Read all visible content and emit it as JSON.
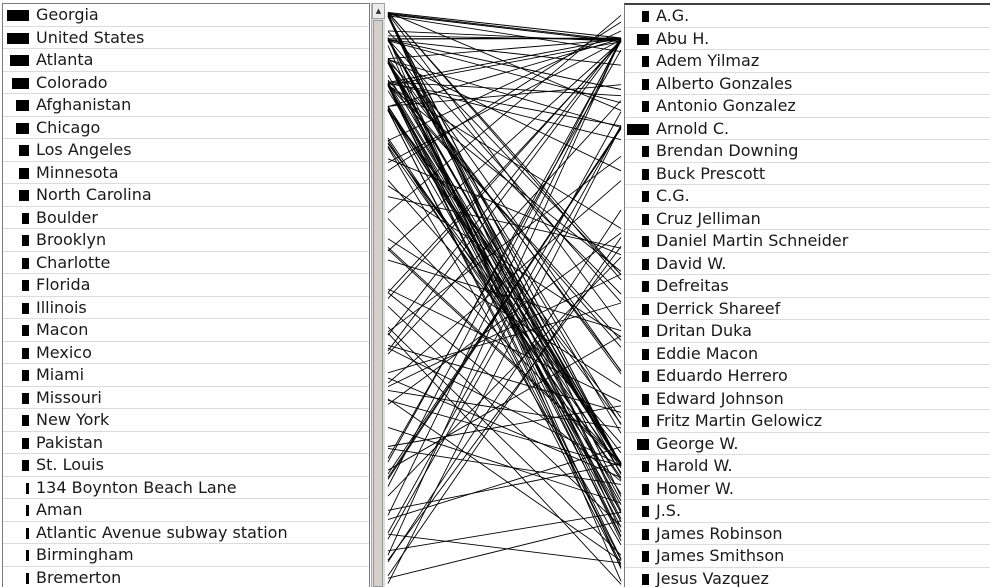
{
  "left_list": {
    "items": [
      {
        "label": "Georgia",
        "weight": 1.0
      },
      {
        "label": "United States",
        "weight": 1.0
      },
      {
        "label": "Atlanta",
        "weight": 0.85
      },
      {
        "label": "Colorado",
        "weight": 0.75
      },
      {
        "label": "Afghanistan",
        "weight": 0.6
      },
      {
        "label": "Chicago",
        "weight": 0.6
      },
      {
        "label": "Los Angeles",
        "weight": 0.45
      },
      {
        "label": "Minnesota",
        "weight": 0.45
      },
      {
        "label": "North Carolina",
        "weight": 0.45
      },
      {
        "label": "Boulder",
        "weight": 0.3
      },
      {
        "label": "Brooklyn",
        "weight": 0.3
      },
      {
        "label": "Charlotte",
        "weight": 0.3
      },
      {
        "label": "Florida",
        "weight": 0.3
      },
      {
        "label": "Illinois",
        "weight": 0.3
      },
      {
        "label": "Macon",
        "weight": 0.3
      },
      {
        "label": "Mexico",
        "weight": 0.3
      },
      {
        "label": "Miami",
        "weight": 0.3
      },
      {
        "label": "Missouri",
        "weight": 0.3
      },
      {
        "label": "New York",
        "weight": 0.3
      },
      {
        "label": "Pakistan",
        "weight": 0.3
      },
      {
        "label": "St. Louis",
        "weight": 0.3
      },
      {
        "label": "134 Boynton Beach Lane",
        "weight": 0.15
      },
      {
        "label": "Aman",
        "weight": 0.15
      },
      {
        "label": "Atlantic Avenue subway station",
        "weight": 0.15
      },
      {
        "label": "Birmingham",
        "weight": 0.15
      },
      {
        "label": "Bremerton",
        "weight": 0.15
      }
    ]
  },
  "right_list": {
    "items": [
      {
        "label": "A.G.",
        "weight": 0.3
      },
      {
        "label": "Abu H.",
        "weight": 0.55
      },
      {
        "label": "Adem Yilmaz",
        "weight": 0.3
      },
      {
        "label": "Alberto Gonzales",
        "weight": 0.3
      },
      {
        "label": "Antonio Gonzalez",
        "weight": 0.3
      },
      {
        "label": "Arnold C.",
        "weight": 1.0
      },
      {
        "label": "Brendan Downing",
        "weight": 0.3
      },
      {
        "label": "Buck Prescott",
        "weight": 0.3
      },
      {
        "label": "C.G.",
        "weight": 0.3
      },
      {
        "label": "Cruz Jelliman",
        "weight": 0.3
      },
      {
        "label": "Daniel Martin Schneider",
        "weight": 0.3
      },
      {
        "label": "David W.",
        "weight": 0.3
      },
      {
        "label": "Defreitas",
        "weight": 0.3
      },
      {
        "label": "Derrick Shareef",
        "weight": 0.3
      },
      {
        "label": "Dritan Duka",
        "weight": 0.3
      },
      {
        "label": "Eddie Macon",
        "weight": 0.3
      },
      {
        "label": "Eduardo Herrero",
        "weight": 0.3
      },
      {
        "label": "Edward Johnson",
        "weight": 0.3
      },
      {
        "label": "Fritz Martin Gelowicz",
        "weight": 0.3
      },
      {
        "label": "George W.",
        "weight": 0.55
      },
      {
        "label": "Harold W.",
        "weight": 0.3
      },
      {
        "label": "Homer W.",
        "weight": 0.3
      },
      {
        "label": "J.S.",
        "weight": 0.3
      },
      {
        "label": "James Robinson",
        "weight": 0.3
      },
      {
        "label": "James Smithson",
        "weight": 0.3
      },
      {
        "label": "Jesus Vazquez",
        "weight": 0.3
      }
    ]
  },
  "scrollbar": {
    "up_arrow_icon": "triangle-up-icon"
  },
  "colors": {
    "bar": "#000000",
    "line": "#000000",
    "background": "#ffffff"
  }
}
